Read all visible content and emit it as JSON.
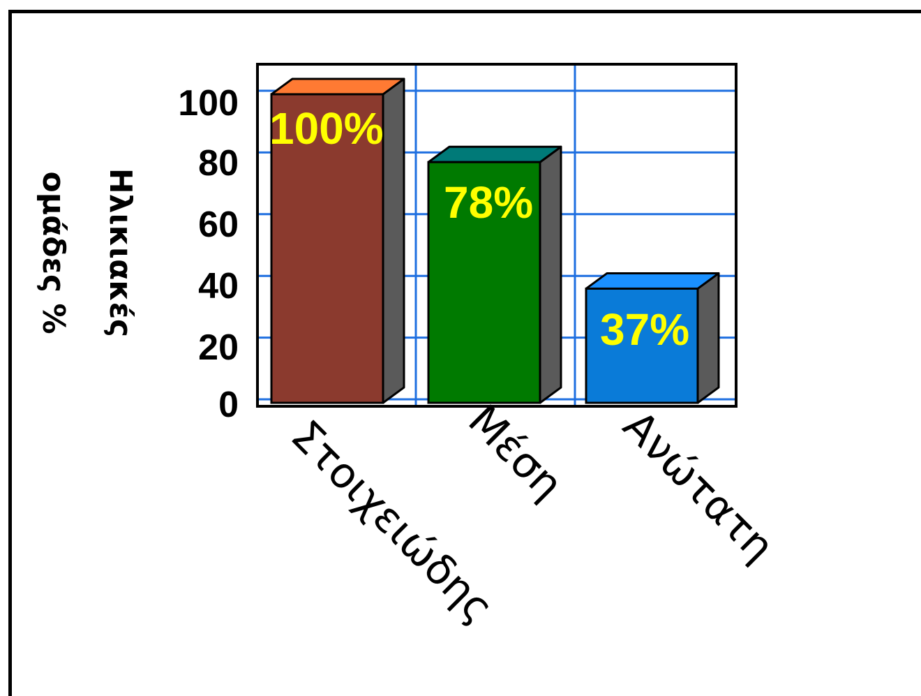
{
  "chart_data": {
    "type": "bar",
    "style": "3d",
    "categories": [
      "Στοιχειώδης",
      "Μέση",
      "Ανώτατη"
    ],
    "values": [
      100,
      78,
      37
    ],
    "data_labels": [
      "100%",
      "78%",
      "37%"
    ],
    "ylabel_lines": [
      "Ηλικιακές",
      "ομάδες %"
    ],
    "yticks": [
      "0",
      "20",
      "40",
      "60",
      "80",
      "100"
    ],
    "ylim": [
      0,
      110
    ],
    "grid": true,
    "colors": {
      "bars": [
        "#8b3a2e",
        "#007a00",
        "#0a7bd8"
      ],
      "tops": [
        "#ff7a33",
        "#007a78",
        "#1a90ff"
      ],
      "sides": "#5a5a5a",
      "grid": "#1e6fe0",
      "labels": "#ffff00"
    }
  }
}
